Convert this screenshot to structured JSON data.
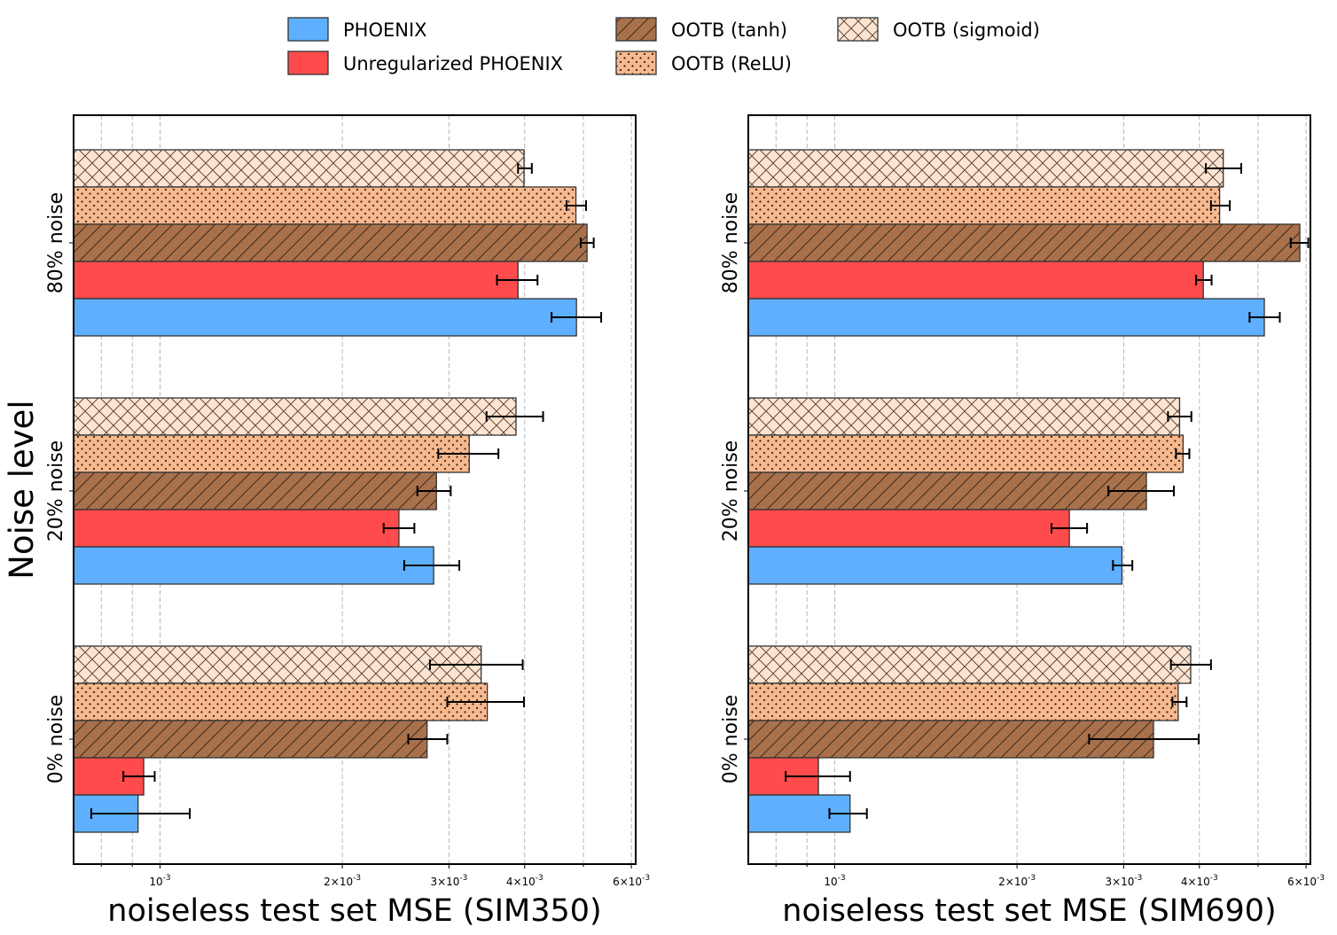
{
  "legend": {
    "entries": [
      {
        "name": "PHOENIX",
        "color": "#5eb0ff",
        "hatch": "none"
      },
      {
        "name": "Unregularized PHOENIX",
        "color": "#ff4b4b",
        "hatch": "none"
      },
      {
        "name": "OOTB (tanh)",
        "color": "#a9714b",
        "hatch": "diagonal"
      },
      {
        "name": "OOTB (ReLU)",
        "color": "#f8b98f",
        "hatch": "dots"
      },
      {
        "name": "OOTB (sigmoid)",
        "color": "#fde4d0",
        "hatch": "cross"
      }
    ]
  },
  "chart_data": [
    {
      "type": "bar",
      "orientation": "horizontal",
      "xscale": "log",
      "xlim": [
        0.00072,
        0.0061
      ],
      "xlabel": "noiseless test set MSE (SIM350)",
      "ylabel": "Noise level",
      "categories": [
        "80% noise",
        "20% noise",
        "0% noise"
      ],
      "xticks": [
        {
          "value": 0.001,
          "label": "10^{-3}"
        },
        {
          "value": 0.002,
          "label": "2×10^{-3}"
        },
        {
          "value": 0.003,
          "label": "3×10^{-3}"
        },
        {
          "value": 0.004,
          "label": "4×10^{-3}"
        },
        {
          "value": 0.006,
          "label": "6×10^{-3}"
        }
      ],
      "grid": "x-major-and-minor-dashed",
      "series": [
        {
          "name": "OOTB (sigmoid)",
          "values": [
            0.00399,
            0.00387,
            0.00339
          ],
          "errors": [
            [
              0.0039,
              0.00411
            ],
            [
              0.00346,
              0.00429
            ],
            [
              0.00279,
              0.00397
            ]
          ]
        },
        {
          "name": "OOTB (ReLU)",
          "values": [
            0.00486,
            0.00324,
            0.00347
          ],
          "errors": [
            [
              0.00469,
              0.00505
            ],
            [
              0.00288,
              0.00362
            ],
            [
              0.00298,
              0.00399
            ]
          ]
        },
        {
          "name": "OOTB (tanh)",
          "values": [
            0.00507,
            0.00286,
            0.00276
          ],
          "errors": [
            [
              0.00495,
              0.0052
            ],
            [
              0.00266,
              0.00302
            ],
            [
              0.00257,
              0.00298
            ]
          ]
        },
        {
          "name": "Unregularized PHOENIX",
          "values": [
            0.0039,
            0.00248,
            0.00094
          ],
          "errors": [
            [
              0.0036,
              0.0042
            ],
            [
              0.00234,
              0.00263
            ],
            [
              0.00087,
              0.00098
            ]
          ]
        },
        {
          "name": "PHOENIX",
          "values": [
            0.00487,
            0.00283,
            0.00092
          ],
          "errors": [
            [
              0.00443,
              0.00535
            ],
            [
              0.00253,
              0.00312
            ],
            [
              0.00077,
              0.00112
            ]
          ]
        }
      ]
    },
    {
      "type": "bar",
      "orientation": "horizontal",
      "xscale": "log",
      "xlim": [
        0.00072,
        0.0061
      ],
      "xlabel": "noiseless test set MSE (SIM690)",
      "ylabel": "",
      "categories": [
        "80% noise",
        "20% noise",
        "0% noise"
      ],
      "xticks": [
        {
          "value": 0.001,
          "label": "10^{-3}"
        },
        {
          "value": 0.002,
          "label": "2×10^{-3}"
        },
        {
          "value": 0.003,
          "label": "3×10^{-3}"
        },
        {
          "value": 0.004,
          "label": "4×10^{-3}"
        },
        {
          "value": 0.006,
          "label": "6×10^{-3}"
        }
      ],
      "grid": "x-major-and-minor-dashed",
      "series": [
        {
          "name": "OOTB (sigmoid)",
          "values": [
            0.00438,
            0.00371,
            0.00387
          ],
          "errors": [
            [
              0.0041,
              0.00469
            ],
            [
              0.00355,
              0.00388
            ],
            [
              0.00359,
              0.00418
            ]
          ]
        },
        {
          "name": "OOTB (ReLU)",
          "values": [
            0.00432,
            0.00376,
            0.00369
          ],
          "errors": [
            [
              0.00418,
              0.00449
            ],
            [
              0.00366,
              0.00385
            ],
            [
              0.00361,
              0.00381
            ]
          ]
        },
        {
          "name": "OOTB (tanh)",
          "values": [
            0.00586,
            0.00327,
            0.00336
          ],
          "errors": [
            [
              0.00566,
              0.00605
            ],
            [
              0.00283,
              0.00363
            ],
            [
              0.00263,
              0.00399
            ]
          ]
        },
        {
          "name": "Unregularized PHOENIX",
          "values": [
            0.00406,
            0.00244,
            0.00094
          ],
          "errors": [
            [
              0.00395,
              0.00419
            ],
            [
              0.00228,
              0.00261
            ],
            [
              0.00083,
              0.00106
            ]
          ]
        },
        {
          "name": "PHOENIX",
          "values": [
            0.00512,
            0.00298,
            0.00106
          ],
          "errors": [
            [
              0.00484,
              0.00543
            ],
            [
              0.00288,
              0.0031
            ],
            [
              0.00098,
              0.00113
            ]
          ]
        }
      ]
    }
  ]
}
